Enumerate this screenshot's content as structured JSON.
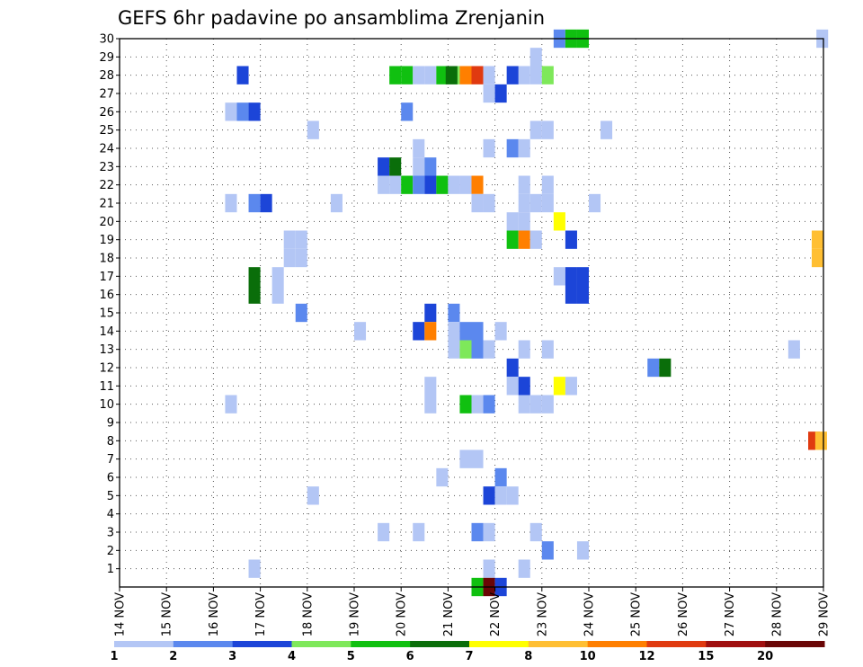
{
  "chart_data": {
    "type": "heatmap",
    "title": "GEFS 6hr padavine po ansamblima Zrenjanin",
    "xlabel": "",
    "ylabel": "",
    "x_tick_labels": [
      "14 NOV",
      "15 NOV",
      "16 NOV",
      "17 NOV",
      "18 NOV",
      "19 NOV",
      "20 NOV",
      "21 NOV",
      "22 NOV",
      "23 NOV",
      "24 NOV",
      "25 NOV",
      "26 NOV",
      "27 NOV",
      "28 NOV",
      "29 NOV"
    ],
    "y_tick_labels": [
      "1",
      "2",
      "3",
      "4",
      "5",
      "6",
      "7",
      "8",
      "9",
      "10",
      "11",
      "12",
      "13",
      "14",
      "15",
      "16",
      "17",
      "18",
      "19",
      "20",
      "21",
      "22",
      "23",
      "24",
      "25",
      "26",
      "27",
      "28",
      "29",
      "30"
    ],
    "x_unit": "6-hour step after 14 NOV 00Z",
    "y_unit": "ensemble member",
    "xlim": [
      0,
      60
    ],
    "ylim": [
      0,
      30
    ],
    "grid": true,
    "colorbar": {
      "position": "bottom",
      "tick_labels": [
        "1",
        "2",
        "3",
        "4",
        "5",
        "6",
        "7",
        "8",
        "10",
        "12",
        "15",
        "20"
      ],
      "colors": [
        "#b3c6f5",
        "#5b88ee",
        "#1c45d8",
        "#7ee85a",
        "#10c010",
        "#0a6e0a",
        "#ffff00",
        "#ffbf33",
        "#ff7f00",
        "#e03a10",
        "#a01010",
        "#6a0606"
      ]
    },
    "cells": [
      {
        "x": 37.5,
        "y": 30,
        "v": 2
      },
      {
        "x": 38.5,
        "y": 30,
        "v": 5
      },
      {
        "x": 39.5,
        "y": 30,
        "v": 5
      },
      {
        "x": 59.9,
        "y": 30,
        "v": 1
      },
      {
        "x": 35.5,
        "y": 29,
        "v": 1
      },
      {
        "x": 28.5,
        "y": 28,
        "v": 4
      },
      {
        "x": 34.5,
        "y": 28,
        "v": 1
      },
      {
        "x": 35.5,
        "y": 28,
        "v": 1
      },
      {
        "x": 36.5,
        "y": 28,
        "v": 4
      },
      {
        "x": 10.5,
        "y": 28,
        "v": 3
      },
      {
        "x": 23.5,
        "y": 28,
        "v": 5
      },
      {
        "x": 24.5,
        "y": 28,
        "v": 5
      },
      {
        "x": 25.5,
        "y": 28,
        "v": 1
      },
      {
        "x": 26.5,
        "y": 28,
        "v": 1
      },
      {
        "x": 27.5,
        "y": 28,
        "v": 5
      },
      {
        "x": 28.3,
        "y": 28,
        "v": 6
      },
      {
        "x": 29.5,
        "y": 28,
        "v": 10
      },
      {
        "x": 30.5,
        "y": 28,
        "v": 12
      },
      {
        "x": 31.5,
        "y": 28,
        "v": 1
      },
      {
        "x": 33.5,
        "y": 28,
        "v": 3
      },
      {
        "x": 31.5,
        "y": 27,
        "v": 1
      },
      {
        "x": 32.5,
        "y": 27,
        "v": 3
      },
      {
        "x": 9.5,
        "y": 26,
        "v": 1
      },
      {
        "x": 10.5,
        "y": 26,
        "v": 2
      },
      {
        "x": 11.5,
        "y": 26,
        "v": 3
      },
      {
        "x": 24.5,
        "y": 26,
        "v": 2
      },
      {
        "x": 16.5,
        "y": 25,
        "v": 1
      },
      {
        "x": 35.5,
        "y": 25,
        "v": 1
      },
      {
        "x": 36.5,
        "y": 25,
        "v": 1
      },
      {
        "x": 41.5,
        "y": 25,
        "v": 1
      },
      {
        "x": 25.5,
        "y": 24,
        "v": 1
      },
      {
        "x": 31.5,
        "y": 24,
        "v": 1
      },
      {
        "x": 33.5,
        "y": 24,
        "v": 2
      },
      {
        "x": 34.5,
        "y": 24,
        "v": 1
      },
      {
        "x": 22.5,
        "y": 23,
        "v": 3
      },
      {
        "x": 23.5,
        "y": 23,
        "v": 6
      },
      {
        "x": 25.5,
        "y": 23,
        "v": 1
      },
      {
        "x": 26.5,
        "y": 23,
        "v": 2
      },
      {
        "x": 22.5,
        "y": 22,
        "v": 1
      },
      {
        "x": 23.5,
        "y": 22,
        "v": 1
      },
      {
        "x": 24.5,
        "y": 22,
        "v": 5
      },
      {
        "x": 25.5,
        "y": 22,
        "v": 2
      },
      {
        "x": 26.5,
        "y": 22,
        "v": 3
      },
      {
        "x": 27.5,
        "y": 22,
        "v": 5
      },
      {
        "x": 28.5,
        "y": 22,
        "v": 1
      },
      {
        "x": 29.5,
        "y": 22,
        "v": 1
      },
      {
        "x": 30.5,
        "y": 22,
        "v": 10
      },
      {
        "x": 34.5,
        "y": 22,
        "v": 1
      },
      {
        "x": 36.5,
        "y": 22,
        "v": 1
      },
      {
        "x": 9.5,
        "y": 21,
        "v": 1
      },
      {
        "x": 11.5,
        "y": 21,
        "v": 2
      },
      {
        "x": 12.5,
        "y": 21,
        "v": 3
      },
      {
        "x": 18.5,
        "y": 21,
        "v": 1
      },
      {
        "x": 30.5,
        "y": 21,
        "v": 1
      },
      {
        "x": 31.5,
        "y": 21,
        "v": 1
      },
      {
        "x": 34.5,
        "y": 21,
        "v": 1
      },
      {
        "x": 35.5,
        "y": 21,
        "v": 1
      },
      {
        "x": 36.5,
        "y": 21,
        "v": 1
      },
      {
        "x": 40.5,
        "y": 21,
        "v": 1
      },
      {
        "x": 33.5,
        "y": 20,
        "v": 1
      },
      {
        "x": 34.5,
        "y": 20,
        "v": 1
      },
      {
        "x": 37.5,
        "y": 20,
        "v": 7
      },
      {
        "x": 14.5,
        "y": 19,
        "v": 1
      },
      {
        "x": 15.5,
        "y": 19,
        "v": 1
      },
      {
        "x": 33.5,
        "y": 19,
        "v": 5
      },
      {
        "x": 34.5,
        "y": 19,
        "v": 10
      },
      {
        "x": 35.5,
        "y": 19,
        "v": 1
      },
      {
        "x": 38.5,
        "y": 19,
        "v": 3
      },
      {
        "x": 59.5,
        "y": 19,
        "v": 8
      },
      {
        "x": 14.5,
        "y": 18,
        "v": 1
      },
      {
        "x": 15.5,
        "y": 18,
        "v": 1
      },
      {
        "x": 59.5,
        "y": 18,
        "v": 8
      },
      {
        "x": 11.5,
        "y": 17,
        "v": 6
      },
      {
        "x": 13.5,
        "y": 17,
        "v": 1
      },
      {
        "x": 37.5,
        "y": 17,
        "v": 1
      },
      {
        "x": 38.5,
        "y": 17,
        "v": 3
      },
      {
        "x": 39.5,
        "y": 17,
        "v": 3
      },
      {
        "x": 11.5,
        "y": 16,
        "v": 6
      },
      {
        "x": 13.5,
        "y": 16,
        "v": 1
      },
      {
        "x": 38.5,
        "y": 16,
        "v": 3
      },
      {
        "x": 39.5,
        "y": 16,
        "v": 3
      },
      {
        "x": 15.5,
        "y": 15,
        "v": 2
      },
      {
        "x": 26.5,
        "y": 15,
        "v": 3
      },
      {
        "x": 28.5,
        "y": 15,
        "v": 2
      },
      {
        "x": 20.5,
        "y": 14,
        "v": 1
      },
      {
        "x": 25.5,
        "y": 14,
        "v": 3
      },
      {
        "x": 26.5,
        "y": 14,
        "v": 10
      },
      {
        "x": 28.5,
        "y": 14,
        "v": 1
      },
      {
        "x": 29.5,
        "y": 14,
        "v": 2
      },
      {
        "x": 30.5,
        "y": 14,
        "v": 2
      },
      {
        "x": 32.5,
        "y": 14,
        "v": 1
      },
      {
        "x": 28.5,
        "y": 13,
        "v": 1
      },
      {
        "x": 29.5,
        "y": 13,
        "v": 4
      },
      {
        "x": 30.5,
        "y": 13,
        "v": 2
      },
      {
        "x": 31.5,
        "y": 13,
        "v": 1
      },
      {
        "x": 34.5,
        "y": 13,
        "v": 1
      },
      {
        "x": 36.5,
        "y": 13,
        "v": 1
      },
      {
        "x": 57.5,
        "y": 13,
        "v": 1
      },
      {
        "x": 33.5,
        "y": 12,
        "v": 3
      },
      {
        "x": 45.5,
        "y": 12,
        "v": 2
      },
      {
        "x": 46.5,
        "y": 12,
        "v": 6
      },
      {
        "x": 26.5,
        "y": 11,
        "v": 1
      },
      {
        "x": 33.5,
        "y": 11,
        "v": 1
      },
      {
        "x": 34.5,
        "y": 11,
        "v": 3
      },
      {
        "x": 37.5,
        "y": 11,
        "v": 7
      },
      {
        "x": 38.5,
        "y": 11,
        "v": 1
      },
      {
        "x": 9.5,
        "y": 10,
        "v": 1
      },
      {
        "x": 26.5,
        "y": 10,
        "v": 1
      },
      {
        "x": 29.5,
        "y": 10,
        "v": 5
      },
      {
        "x": 30.5,
        "y": 10,
        "v": 1
      },
      {
        "x": 31.5,
        "y": 10,
        "v": 2
      },
      {
        "x": 34.5,
        "y": 10,
        "v": 1
      },
      {
        "x": 35.5,
        "y": 10,
        "v": 1
      },
      {
        "x": 36.5,
        "y": 10,
        "v": 1
      },
      {
        "x": 59.2,
        "y": 8,
        "v": 12
      },
      {
        "x": 59.8,
        "y": 8,
        "v": 8
      },
      {
        "x": 29.5,
        "y": 7,
        "v": 1
      },
      {
        "x": 30.5,
        "y": 7,
        "v": 1
      },
      {
        "x": 27.5,
        "y": 6,
        "v": 1
      },
      {
        "x": 32.5,
        "y": 6,
        "v": 2
      },
      {
        "x": 16.5,
        "y": 5,
        "v": 1
      },
      {
        "x": 31.5,
        "y": 5,
        "v": 3
      },
      {
        "x": 32.5,
        "y": 5,
        "v": 1
      },
      {
        "x": 33.5,
        "y": 5,
        "v": 1
      },
      {
        "x": 22.5,
        "y": 3,
        "v": 1
      },
      {
        "x": 25.5,
        "y": 3,
        "v": 1
      },
      {
        "x": 30.5,
        "y": 3,
        "v": 2
      },
      {
        "x": 31.5,
        "y": 3,
        "v": 1
      },
      {
        "x": 35.5,
        "y": 3,
        "v": 1
      },
      {
        "x": 36.5,
        "y": 2,
        "v": 2
      },
      {
        "x": 39.5,
        "y": 2,
        "v": 1
      },
      {
        "x": 11.5,
        "y": 1,
        "v": 1
      },
      {
        "x": 31.5,
        "y": 1,
        "v": 1
      },
      {
        "x": 34.5,
        "y": 1,
        "v": 1
      },
      {
        "x": 30.5,
        "y": 0,
        "v": 5
      },
      {
        "x": 31.5,
        "y": 0,
        "v": 20
      },
      {
        "x": 32.5,
        "y": 0,
        "v": 3
      }
    ]
  }
}
